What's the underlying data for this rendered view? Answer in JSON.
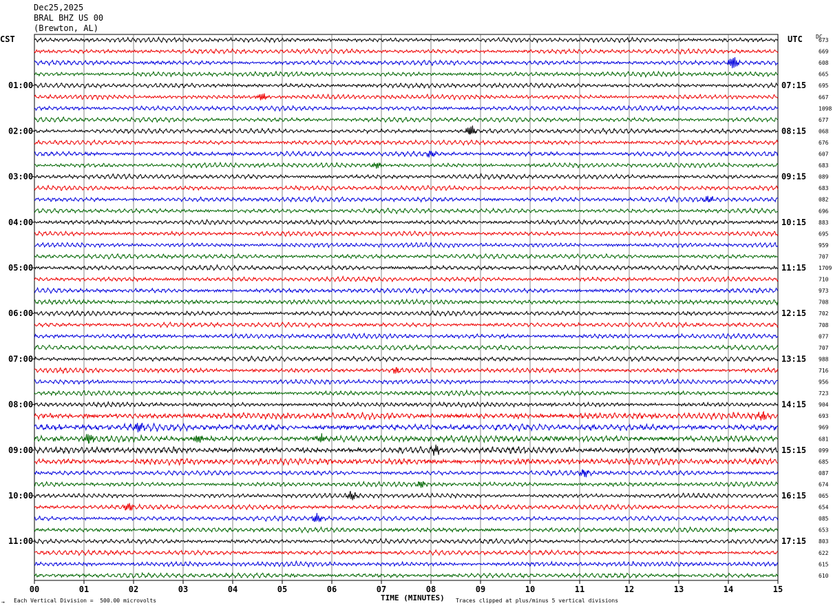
{
  "header": {
    "date": "Dec25,2025",
    "station": "BRAL BHZ US 00",
    "location": "(Brewton, AL)"
  },
  "left_axis_label": "CST",
  "right_axis_label": "UTC",
  "dc_header": "DC",
  "footer": {
    "scale_note": "Each Vertical Division =  500.00 microvolts",
    "clip_note": "Traces clipped at plus/minus 5 vertical divisions",
    "corner_mark": "→"
  },
  "colors": {
    "trace_cycle": [
      "#000000",
      "#ee0000",
      "#0000dd",
      "#006600"
    ],
    "grid": "#555555",
    "frame": "#000000"
  },
  "chart_data": {
    "type": "line",
    "xlabel": "TIME (MINUTES)",
    "xlim": [
      0,
      15
    ],
    "x_ticks": [
      "00",
      "01",
      "02",
      "03",
      "04",
      "05",
      "06",
      "07",
      "08",
      "09",
      "10",
      "11",
      "12",
      "13",
      "14",
      "15"
    ],
    "rows_per_hour": 4,
    "row_minutes": 15,
    "num_rows": 48,
    "left_hour_labels": [
      "01:00",
      "02:00",
      "03:00",
      "04:00",
      "05:00",
      "06:00",
      "07:00",
      "08:00",
      "09:00",
      "10:00",
      "11:00"
    ],
    "right_hour_labels": [
      "07:15",
      "08:15",
      "09:15",
      "10:15",
      "11:15",
      "12:15",
      "13:15",
      "14:15",
      "15:15",
      "16:15",
      "17:15"
    ],
    "first_labeled_row": 4,
    "dc_offsets": [
      "673",
      "669",
      "608",
      "665",
      "695",
      "667",
      "1098",
      "677",
      "068",
      "676",
      "607",
      "683",
      "089",
      "683",
      "082",
      "696",
      "883",
      "695",
      "959",
      "707",
      "1709",
      "710",
      "973",
      "708",
      "702",
      "708",
      "077",
      "707",
      "988",
      "716",
      "956",
      "723",
      "904",
      "693",
      "969",
      "681",
      "099",
      "685",
      "087",
      "674",
      "065",
      "654",
      "085",
      "653",
      "803",
      "622",
      "615",
      "610"
    ],
    "events": [
      {
        "row": 2,
        "minute": 14.1,
        "amp": 3.2
      },
      {
        "row": 5,
        "minute": 4.6,
        "amp": 1.8
      },
      {
        "row": 8,
        "minute": 8.8,
        "amp": 2.5
      },
      {
        "row": 10,
        "minute": 8.0,
        "amp": 1.6
      },
      {
        "row": 11,
        "minute": 6.9,
        "amp": 1.4
      },
      {
        "row": 14,
        "minute": 13.6,
        "amp": 1.6
      },
      {
        "row": 29,
        "minute": 7.3,
        "amp": 1.5
      },
      {
        "row": 33,
        "minute": 14.7,
        "amp": 2.2
      },
      {
        "row": 34,
        "minute": 2.1,
        "amp": 1.8
      },
      {
        "row": 35,
        "minute": 1.1,
        "amp": 2.2
      },
      {
        "row": 35,
        "minute": 3.3,
        "amp": 2.0
      },
      {
        "row": 35,
        "minute": 5.8,
        "amp": 2.0
      },
      {
        "row": 36,
        "minute": 8.1,
        "amp": 2.2
      },
      {
        "row": 38,
        "minute": 11.1,
        "amp": 1.8
      },
      {
        "row": 39,
        "minute": 7.8,
        "amp": 1.7
      },
      {
        "row": 40,
        "minute": 6.4,
        "amp": 2.0
      },
      {
        "row": 41,
        "minute": 1.9,
        "amp": 1.8
      },
      {
        "row": 42,
        "minute": 5.7,
        "amp": 2.2
      }
    ],
    "noisy_rows": [
      33,
      34,
      35,
      36,
      37
    ]
  }
}
